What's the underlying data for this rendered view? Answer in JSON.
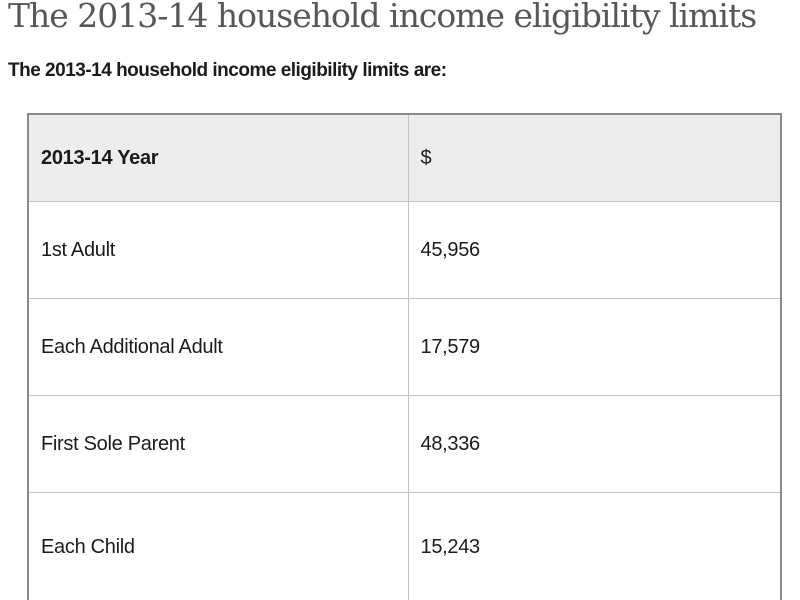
{
  "page": {
    "title": "The 2013-14 household income eligibility limits",
    "intro": "The 2013-14 household income eligibility limits are:"
  },
  "table": {
    "headers": [
      "2013-14 Year",
      "$"
    ],
    "rows": [
      {
        "label": "1st Adult",
        "value": "45,956"
      },
      {
        "label": "Each Additional Adult",
        "value": "17,579"
      },
      {
        "label": "First Sole Parent",
        "value": "48,336"
      },
      {
        "label": "Each Child",
        "value": "15,243"
      }
    ]
  },
  "colors": {
    "title_text": "#575757",
    "body_text": "#1b1b1b",
    "header_row_bg": "#ededed",
    "outer_border": "#8a8a8a",
    "inner_border": "#c2c2c2",
    "page_bg": "#ffffff"
  }
}
